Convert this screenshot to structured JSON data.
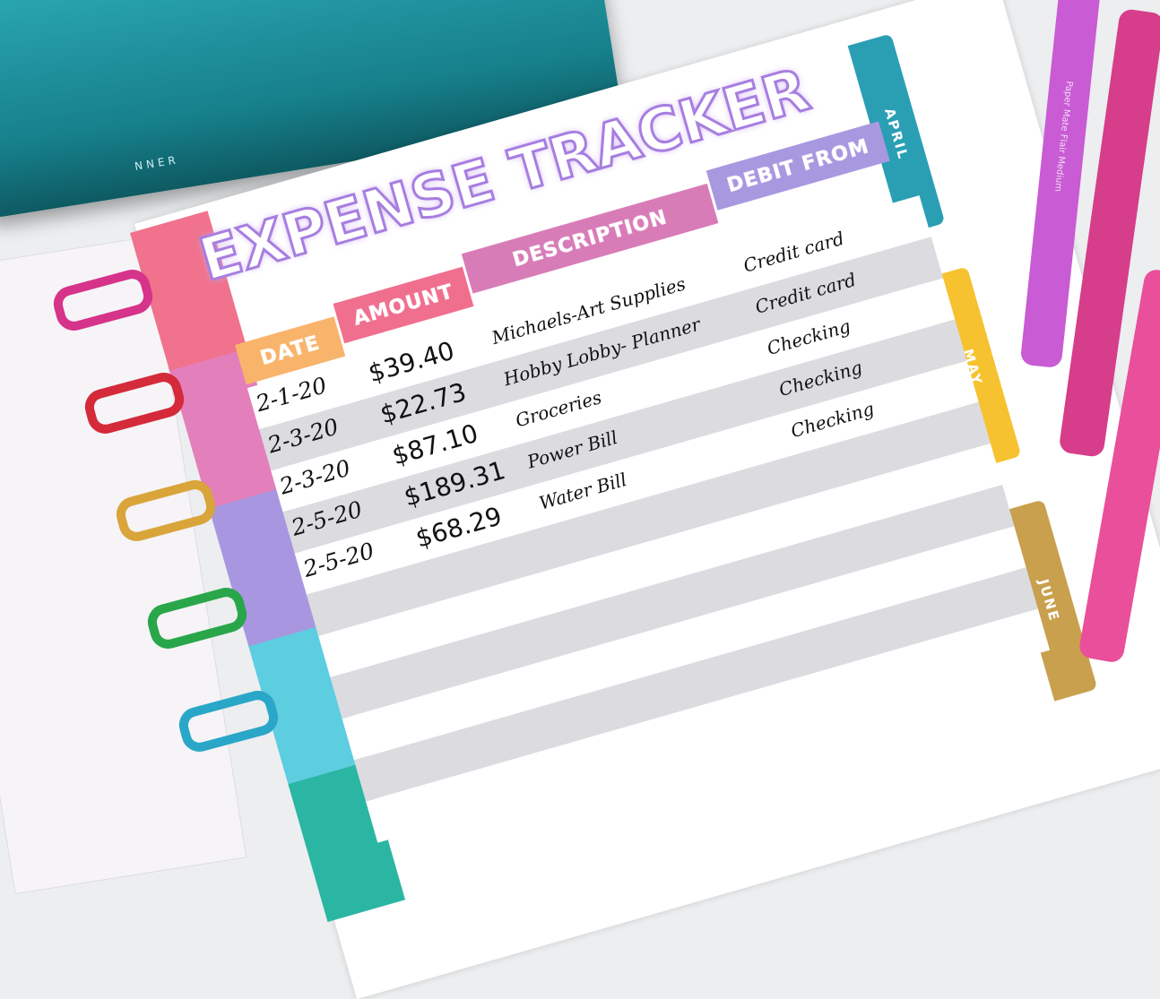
{
  "case_text": "NNER",
  "title": "EXPENSE TRACKER",
  "headers": [
    "DATE",
    "AMOUNT",
    "DESCRIPTION",
    "DEBIT FROM"
  ],
  "header_colors": [
    "#f9b46b",
    "#f06e8e",
    "#d87cb8",
    "#a898e0"
  ],
  "rows": [
    {
      "date": "2-1-20",
      "amount": "$39.40",
      "description": "Michaels-Art Supplies",
      "debit": "Credit card"
    },
    {
      "date": "2-3-20",
      "amount": "$22.73",
      "description": "Hobby Lobby- Planner",
      "debit": "Credit card"
    },
    {
      "date": "2-3-20",
      "amount": "$87.10",
      "description": "Groceries",
      "debit": "Checking"
    },
    {
      "date": "2-5-20",
      "amount": "$189.31",
      "description": "Power Bill",
      "debit": "Checking"
    },
    {
      "date": "2-5-20",
      "amount": "$68.29",
      "description": "Water Bill",
      "debit": "Checking"
    }
  ],
  "tabs": [
    "APRIL",
    "MAY",
    "JUNE"
  ],
  "pen_text": "Paper Mate Flair Medium",
  "colors": {
    "title": "#a77ee0",
    "row_shade": "#dcdbe0",
    "tab_april": "#2a9fb4",
    "tab_may": "#f7c230",
    "tab_june": "#c9a04e"
  }
}
